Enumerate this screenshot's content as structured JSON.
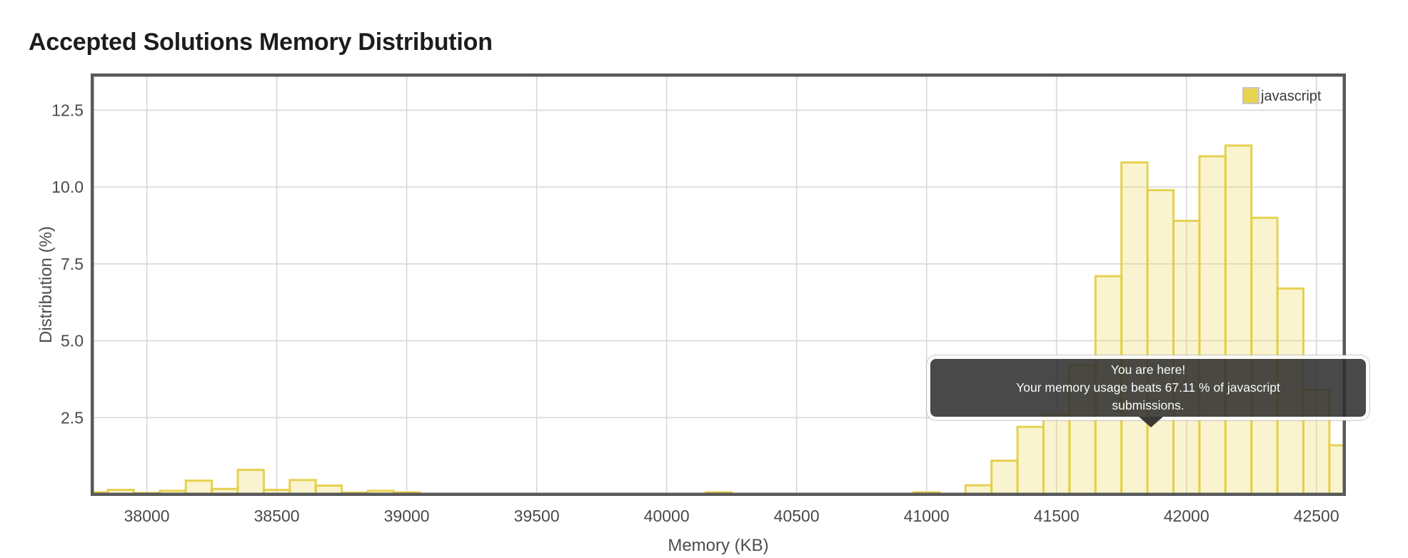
{
  "header": {
    "title": "Accepted Solutions Memory Distribution"
  },
  "legend": {
    "label": "javascript",
    "swatch_color": "#e8d44e",
    "swatch_border": "#c6c6c6"
  },
  "tooltip": {
    "lines": [
      "You are here!",
      "Your memory usage beats 67.11 % of javascript",
      "submissions."
    ],
    "percentile": "67.11 %",
    "language": "javascript"
  },
  "chart_data": {
    "type": "bar",
    "title": "Accepted Solutions Memory Distribution",
    "xlabel": "Memory (KB)",
    "ylabel": "Distribution (%)",
    "series_name": "javascript",
    "bin_width_kb": 100,
    "grid": true,
    "legend_position": "top-right",
    "x_ticks": [
      38000,
      38500,
      39000,
      39500,
      40000,
      40500,
      41000,
      41500,
      42000,
      42500
    ],
    "y_ticks": [
      "2.5",
      "5.0",
      "7.5",
      "10.0",
      "12.5"
    ],
    "xlim": [
      37795,
      42608
    ],
    "ylim": [
      0,
      13.6
    ],
    "categories": [
      37800,
      37900,
      38000,
      38100,
      38200,
      38300,
      38400,
      38500,
      38600,
      38700,
      38800,
      38900,
      39000,
      39100,
      39200,
      39300,
      39400,
      39500,
      39600,
      39700,
      39800,
      39900,
      40000,
      40100,
      40200,
      40300,
      40400,
      40500,
      40600,
      40700,
      40800,
      40900,
      41000,
      41100,
      41200,
      41300,
      41400,
      41500,
      41600,
      41700,
      41800,
      41900,
      42000,
      42100,
      42200,
      42300,
      42400,
      42500,
      42600
    ],
    "values": [
      0.07,
      0.15,
      0.05,
      0.12,
      0.45,
      0.18,
      0.8,
      0.15,
      0.47,
      0.29,
      0.06,
      0.12,
      0.07,
      0,
      0,
      0,
      0,
      0,
      0,
      0,
      0,
      0,
      0,
      0,
      0.07,
      0,
      0,
      0,
      0,
      0,
      0,
      0,
      0.07,
      0,
      0.3,
      1.1,
      2.2,
      2.6,
      4.2,
      7.1,
      10.8,
      9.9,
      8.9,
      11.0,
      11.35,
      9.0,
      6.7,
      3.4,
      1.6
    ],
    "colors": {
      "bar_fill": "rgba(233,214,84,0.28)",
      "bar_stroke": "rgba(229,207,73,0.95)",
      "gridline": "#d8d8d8",
      "frame": "#59595b",
      "tick_label": "#4a4a4a",
      "axis_title": "#4d4d4d"
    }
  }
}
